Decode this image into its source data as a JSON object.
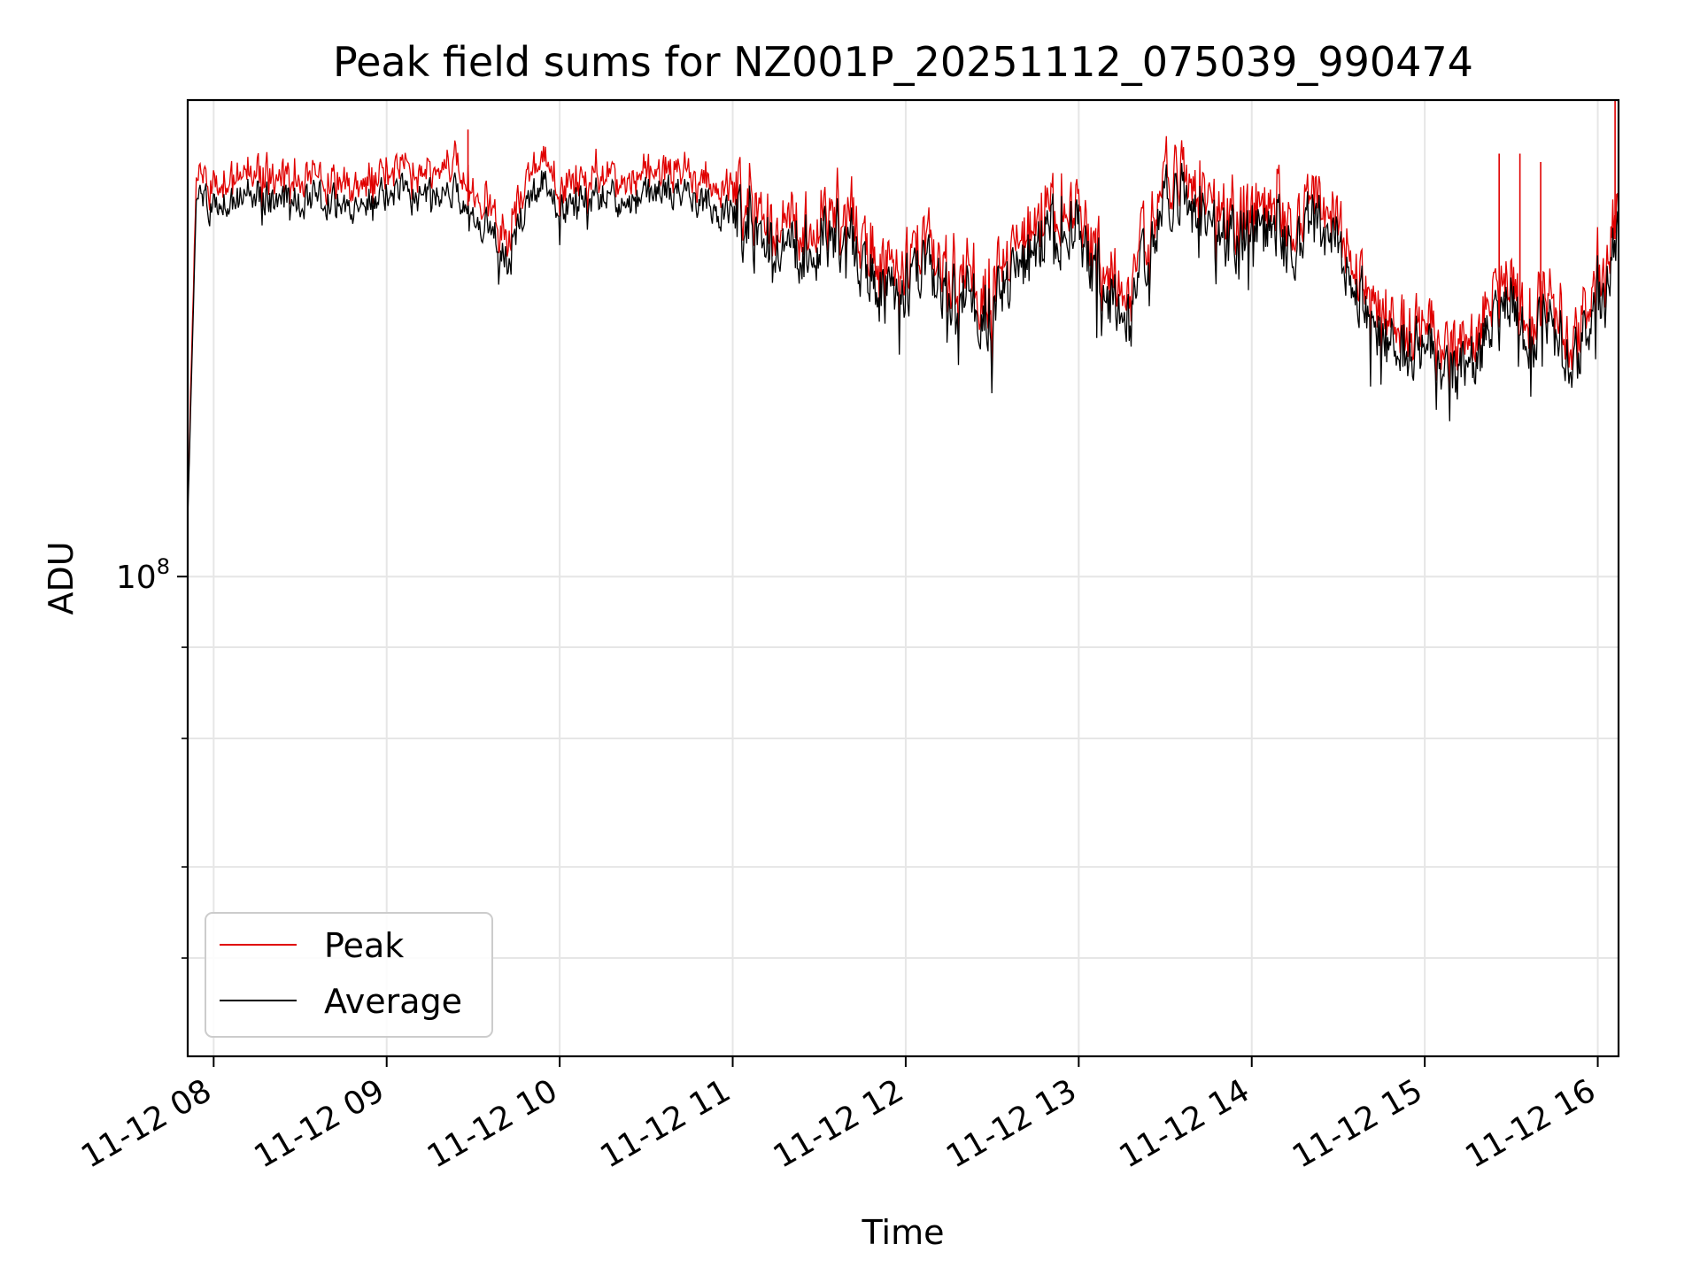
{
  "chart_data": {
    "type": "line",
    "title": "Peak field sums for NZ001P_20251112_075039_990474",
    "xlabel": "Time",
    "ylabel": "ADU",
    "yscale": "log",
    "ylim": [
      22000000,
      450000000
    ],
    "xlim": [
      7.85,
      16.12
    ],
    "grid": true,
    "legend_position": "lower-left",
    "x_ticks": [
      {
        "value": 8,
        "label": "11-12 08"
      },
      {
        "value": 9,
        "label": "11-12 09"
      },
      {
        "value": 10,
        "label": "11-12 10"
      },
      {
        "value": 11,
        "label": "11-12 11"
      },
      {
        "value": 12,
        "label": "11-12 12"
      },
      {
        "value": 13,
        "label": "11-12 13"
      },
      {
        "value": 14,
        "label": "11-12 14"
      },
      {
        "value": 15,
        "label": "11-12 15"
      },
      {
        "value": 16,
        "label": "11-12 16"
      }
    ],
    "y_major_ticks": [
      {
        "value": 100000000,
        "base": "10",
        "exp": "8"
      }
    ],
    "y_minor_ticks": [
      30000000,
      40000000,
      60000000,
      80000000
    ],
    "x_hours": [
      7.85,
      7.9,
      8.0,
      8.2,
      8.4,
      8.6,
      8.8,
      9.0,
      9.2,
      9.4,
      9.6,
      9.7,
      9.8,
      9.9,
      10.0,
      10.2,
      10.4,
      10.6,
      10.8,
      10.9,
      11.0,
      11.1,
      11.2,
      11.3,
      11.4,
      11.5,
      11.6,
      11.7,
      11.8,
      11.9,
      12.0,
      12.1,
      12.2,
      12.3,
      12.4,
      12.5,
      12.6,
      12.7,
      12.8,
      12.9,
      13.0,
      13.1,
      13.2,
      13.3,
      13.4,
      13.5,
      13.6,
      13.7,
      13.8,
      13.9,
      14.0,
      14.1,
      14.2,
      14.3,
      14.4,
      14.5,
      14.6,
      14.7,
      14.8,
      14.9,
      15.0,
      15.1,
      15.2,
      15.3,
      15.4,
      15.5,
      15.6,
      15.7,
      15.8,
      15.9,
      16.0,
      16.05,
      16.1
    ],
    "series": [
      {
        "name": "Average",
        "color": "#000000",
        "values": [
          120000000,
          330000000,
          320000000,
          335000000,
          325000000,
          330000000,
          320000000,
          335000000,
          330000000,
          335000000,
          300000000,
          270000000,
          320000000,
          350000000,
          320000000,
          335000000,
          325000000,
          340000000,
          330000000,
          320000000,
          310000000,
          300000000,
          290000000,
          270000000,
          280000000,
          290000000,
          300000000,
          280000000,
          260000000,
          240000000,
          250000000,
          260000000,
          250000000,
          245000000,
          240000000,
          230000000,
          260000000,
          270000000,
          290000000,
          300000000,
          300000000,
          260000000,
          240000000,
          220000000,
          280000000,
          340000000,
          330000000,
          310000000,
          300000000,
          290000000,
          310000000,
          300000000,
          290000000,
          295000000,
          310000000,
          290000000,
          250000000,
          220000000,
          215000000,
          205000000,
          200000000,
          195000000,
          190000000,
          205000000,
          220000000,
          240000000,
          210000000,
          225000000,
          210000000,
          200000000,
          250000000,
          240000000,
          290000000
        ]
      },
      {
        "name": "Peak",
        "color": "#e00000",
        "values": [
          122000000,
          345000000,
          335000000,
          350000000,
          340000000,
          345000000,
          335000000,
          350000000,
          345000000,
          355000000,
          315000000,
          285000000,
          335000000,
          370000000,
          335000000,
          350000000,
          340000000,
          355000000,
          345000000,
          335000000,
          325000000,
          315000000,
          305000000,
          285000000,
          295000000,
          305000000,
          315000000,
          295000000,
          275000000,
          252000000,
          262000000,
          272000000,
          262000000,
          258000000,
          252000000,
          242000000,
          272000000,
          284000000,
          305000000,
          315000000,
          315000000,
          272000000,
          252000000,
          232000000,
          294000000,
          356000000,
          345000000,
          325000000,
          315000000,
          304000000,
          325000000,
          315000000,
          304000000,
          310000000,
          326000000,
          304000000,
          262000000,
          231000000,
          226000000,
          215000000,
          210000000,
          205000000,
          200000000,
          215000000,
          232000000,
          252000000,
          221000000,
          236000000,
          221000000,
          210000000,
          262000000,
          252000000,
          305000000
        ]
      }
    ],
    "peak_spikes": [
      {
        "x": 9.47,
        "value": 410000000
      },
      {
        "x": 15.43,
        "value": 380000000
      },
      {
        "x": 15.55,
        "value": 380000000
      },
      {
        "x": 15.67,
        "value": 370000000
      },
      {
        "x": 16.1,
        "value": 450000000
      }
    ]
  }
}
